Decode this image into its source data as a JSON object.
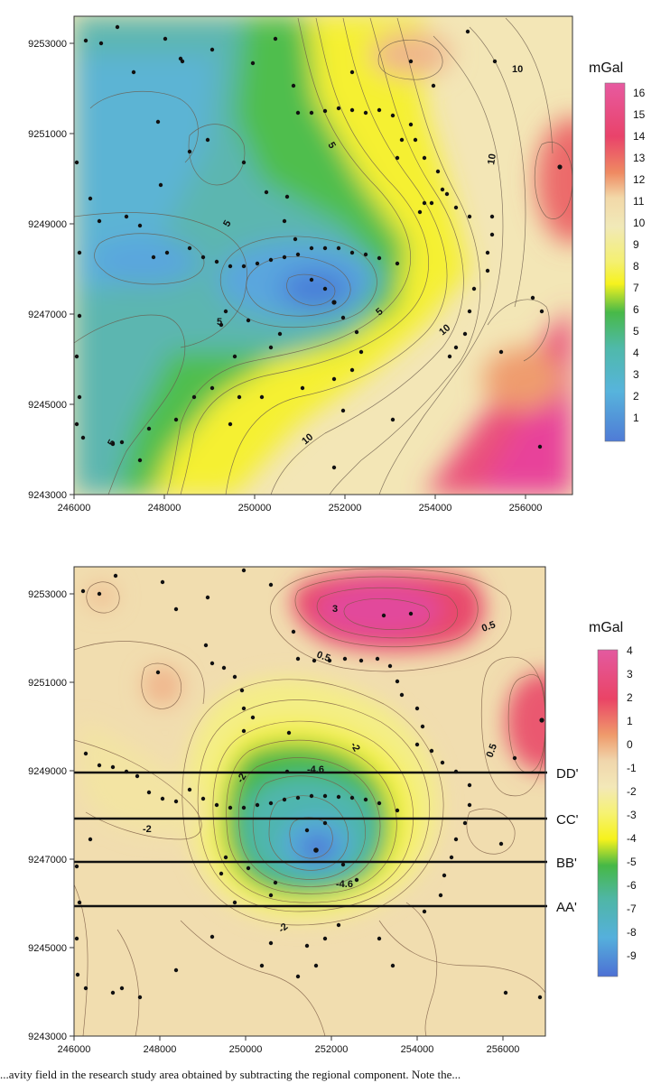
{
  "top_map": {
    "unit": "mGal",
    "x_ticks": [
      "246000",
      "248000",
      "250000",
      "252000",
      "254000",
      "256000"
    ],
    "y_ticks": [
      "9253000",
      "9251000",
      "9249000",
      "9247000",
      "9245000",
      "9243000"
    ],
    "colorbar_ticks": [
      "16",
      "15",
      "14",
      "13",
      "12",
      "11",
      "10",
      "9",
      "8",
      "7",
      "6",
      "5",
      "4",
      "3",
      "2",
      "1"
    ],
    "contour_labels": [
      "10",
      "10",
      "10",
      "10",
      "5",
      "5",
      "5",
      "5",
      "5"
    ]
  },
  "bottom_map": {
    "unit": "mGal",
    "x_ticks": [
      "246000",
      "248000",
      "250000",
      "252000",
      "254000",
      "256000"
    ],
    "y_ticks": [
      "9253000",
      "9251000",
      "9249000",
      "9247000",
      "9245000",
      "9243000"
    ],
    "colorbar_ticks": [
      "4",
      "3",
      "2",
      "1",
      "0",
      "-1",
      "-2",
      "-3",
      "-4",
      "-5",
      "-6",
      "-7",
      "-8",
      "-9"
    ],
    "contour_labels": [
      "3",
      "0.5",
      "0.5",
      "0.5",
      "-2",
      "-2",
      "-2",
      "-4.6",
      "-2",
      "-4.6"
    ],
    "profiles": [
      "DD'",
      "CC'",
      "BB'",
      "AA'"
    ]
  },
  "caption": "...avity field in the research study area obtained by subtracting the regional component. Note the..."
}
